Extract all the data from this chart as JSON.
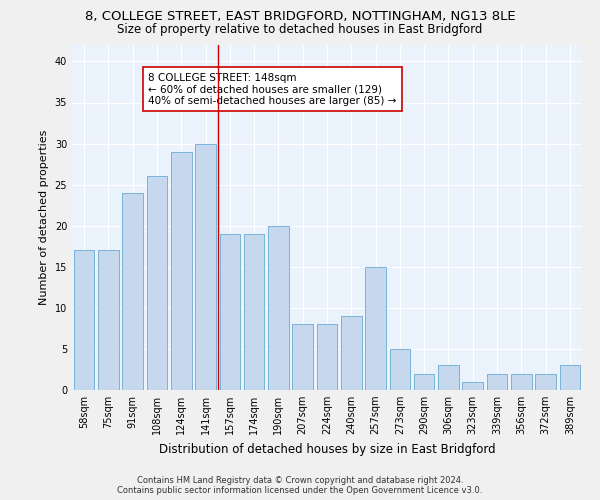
{
  "title_line1": "8, COLLEGE STREET, EAST BRIDGFORD, NOTTINGHAM, NG13 8LE",
  "title_line2": "Size of property relative to detached houses in East Bridgford",
  "xlabel": "Distribution of detached houses by size in East Bridgford",
  "ylabel": "Number of detached properties",
  "footer_line1": "Contains HM Land Registry data © Crown copyright and database right 2024.",
  "footer_line2": "Contains public sector information licensed under the Open Government Licence v3.0.",
  "bar_labels": [
    "58sqm",
    "75sqm",
    "91sqm",
    "108sqm",
    "124sqm",
    "141sqm",
    "157sqm",
    "174sqm",
    "190sqm",
    "207sqm",
    "224sqm",
    "240sqm",
    "257sqm",
    "273sqm",
    "290sqm",
    "306sqm",
    "323sqm",
    "339sqm",
    "356sqm",
    "372sqm",
    "389sqm"
  ],
  "bar_values": [
    17,
    17,
    24,
    26,
    29,
    30,
    19,
    19,
    20,
    8,
    8,
    9,
    15,
    5,
    2,
    3,
    1,
    2,
    2,
    2,
    3
  ],
  "bar_color": "#c5d8ed",
  "bar_edgecolor": "#6aaad4",
  "background_color": "#eaf2fb",
  "grid_color": "#ffffff",
  "vline_x": 5.5,
  "vline_color": "#cc0000",
  "annotation_text": "8 COLLEGE STREET: 148sqm\n← 60% of detached houses are smaller (129)\n40% of semi-detached houses are larger (85) →",
  "annotation_box_edgecolor": "#cc0000",
  "ylim": [
    0,
    42
  ],
  "yticks": [
    0,
    5,
    10,
    15,
    20,
    25,
    30,
    35,
    40
  ],
  "title_fontsize": 9.5,
  "subtitle_fontsize": 8.5,
  "ylabel_fontsize": 8,
  "xlabel_fontsize": 8.5,
  "tick_fontsize": 7,
  "annotation_fontsize": 7.5,
  "footer_fontsize": 6
}
